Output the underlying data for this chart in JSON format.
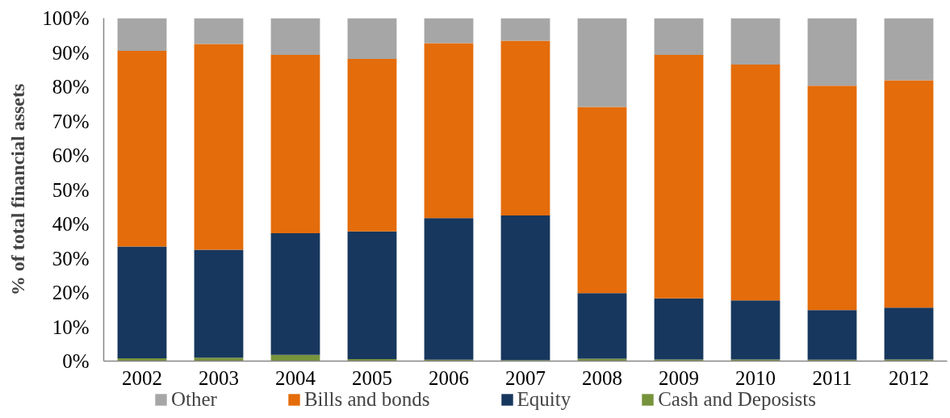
{
  "chart_data": {
    "type": "bar",
    "stacked": true,
    "ylabel": "% of total financial assets",
    "categories": [
      "2002",
      "2003",
      "2004",
      "2005",
      "2006",
      "2007",
      "2008",
      "2009",
      "2010",
      "2011",
      "2012"
    ],
    "series": [
      {
        "name": "Cash and Deposists",
        "color": "#77933c",
        "values": [
          0.8,
          1.0,
          1.8,
          0.6,
          0.4,
          0.3,
          0.7,
          0.5,
          0.5,
          0.4,
          0.5
        ]
      },
      {
        "name": "Equity",
        "color": "#17375e",
        "values": [
          32.6,
          31.5,
          35.5,
          37.2,
          41.3,
          42.2,
          19.1,
          17.8,
          17.2,
          14.5,
          15.1
        ]
      },
      {
        "name": "Bills and bonds",
        "color": "#e46c0a",
        "values": [
          57.1,
          60.0,
          52.0,
          50.3,
          51.0,
          50.9,
          54.3,
          71.0,
          68.8,
          65.4,
          66.3
        ]
      },
      {
        "name": "Other",
        "color": "#a6a6a6",
        "values": [
          9.5,
          7.5,
          10.7,
          11.9,
          7.3,
          6.6,
          25.9,
          10.7,
          13.5,
          19.7,
          18.1
        ]
      }
    ],
    "ylim": [
      0,
      100
    ],
    "yticks": [
      {
        "value": 0,
        "label": "0%"
      },
      {
        "value": 10,
        "label": "10%"
      },
      {
        "value": 20,
        "label": "20%"
      },
      {
        "value": 30,
        "label": "30%"
      },
      {
        "value": 40,
        "label": "40%"
      },
      {
        "value": 50,
        "label": "50%"
      },
      {
        "value": 60,
        "label": "60%"
      },
      {
        "value": 70,
        "label": "70%"
      },
      {
        "value": 80,
        "label": "80%"
      },
      {
        "value": 90,
        "label": "90%"
      },
      {
        "value": 100,
        "label": "100%"
      }
    ],
    "legend": "bottom"
  }
}
